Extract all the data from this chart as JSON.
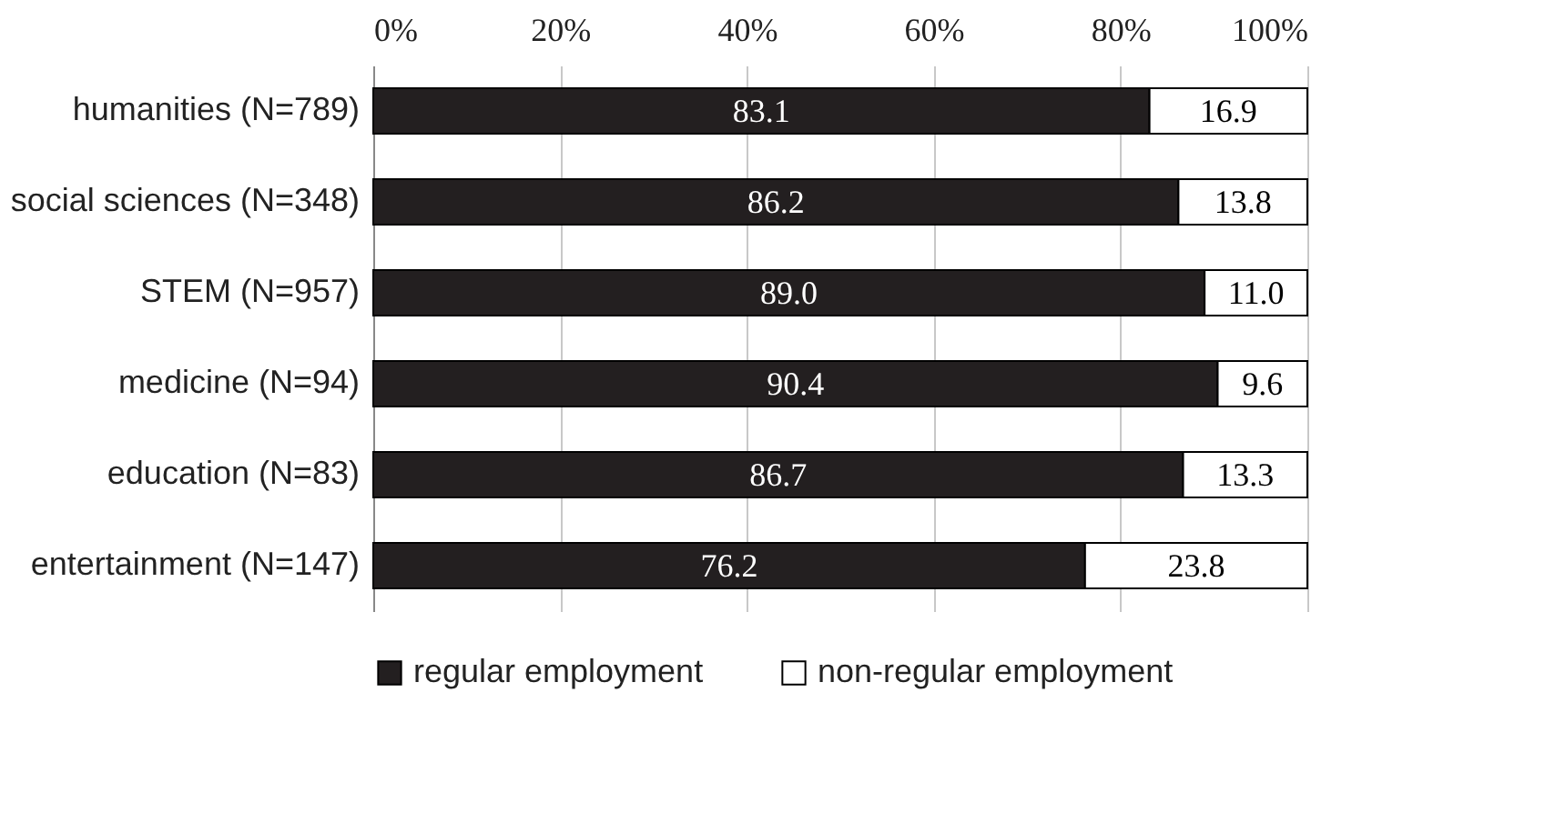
{
  "chart_data": {
    "type": "bar",
    "orientation": "horizontal",
    "stacked": true,
    "categories": [
      "humanities (N=789)",
      "social sciences (N=348)",
      "STEM (N=957)",
      "medicine (N=94)",
      "education (N=83)",
      "entertainment (N=147)"
    ],
    "series": [
      {
        "name": "regular employment",
        "color": "#231f20",
        "values": [
          83.1,
          86.2,
          89.0,
          90.4,
          86.7,
          76.2
        ],
        "value_labels": [
          "83.1",
          "86.2",
          "89.0",
          "90.4",
          "86.7",
          "76.2"
        ]
      },
      {
        "name": "non-regular employment",
        "color": "#ffffff",
        "values": [
          16.9,
          13.8,
          11.0,
          9.6,
          13.3,
          23.8
        ],
        "value_labels": [
          "16.9",
          "13.8",
          "11.0",
          "9.6",
          "13.3",
          "23.8"
        ]
      }
    ],
    "xlim": [
      0,
      100
    ],
    "xticks": [
      {
        "value": 0,
        "label": "0%"
      },
      {
        "value": 20,
        "label": "20%"
      },
      {
        "value": 40,
        "label": "40%"
      },
      {
        "value": 60,
        "label": "60%"
      },
      {
        "value": 80,
        "label": "80%"
      },
      {
        "value": 100,
        "label": "100%"
      }
    ],
    "grid": "x",
    "legend": "bottom"
  }
}
